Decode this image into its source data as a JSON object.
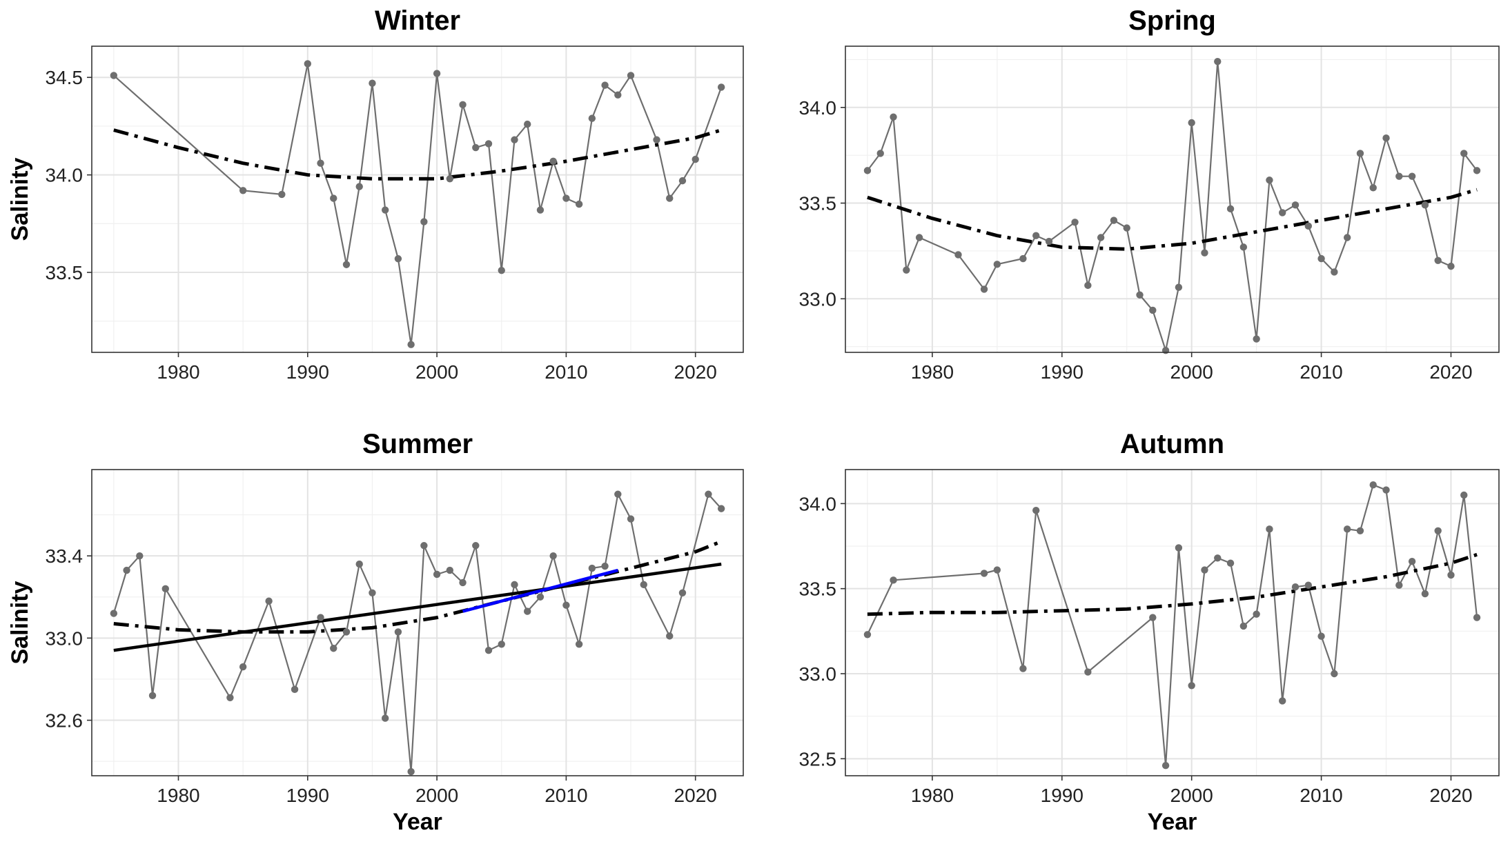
{
  "chart_data": [
    {
      "type": "line",
      "title": "Winter",
      "xlabel": "",
      "ylabel": "Salinity",
      "xlim": [
        1973.3,
        2023.7
      ],
      "ylim": [
        33.09,
        34.66
      ],
      "x_ticks": [
        1980,
        1990,
        2000,
        2010,
        2020
      ],
      "y_ticks": [
        33.5,
        34.0,
        34.5
      ],
      "grid": true,
      "series": [
        {
          "style": "gray line with points",
          "color": "#6e6e6e",
          "x": [
            1975,
            1985,
            1988,
            1990,
            1991,
            1992,
            1993,
            1994,
            1995,
            1996,
            1997,
            1998,
            1999,
            2000,
            2001,
            2002,
            2003,
            2004,
            2005,
            2006,
            2007,
            2008,
            2009,
            2010,
            2011,
            2012,
            2013,
            2014,
            2015,
            2017,
            2018,
            2019,
            2020,
            2022
          ],
          "y": [
            34.51,
            33.92,
            33.9,
            34.57,
            34.06,
            33.88,
            33.54,
            33.94,
            34.47,
            33.82,
            33.57,
            33.13,
            33.76,
            34.52,
            33.98,
            34.36,
            34.14,
            34.16,
            33.51,
            34.18,
            34.26,
            33.82,
            34.07,
            33.88,
            33.85,
            34.29,
            34.46,
            34.41,
            34.51,
            34.18,
            33.88,
            33.97,
            34.08,
            34.45
          ]
        },
        {
          "style": "dash-dot trend",
          "color": "#000000",
          "x": [
            1975,
            1980,
            1985,
            1990,
            1995,
            2000,
            2005,
            2010,
            2015,
            2020,
            2022
          ],
          "y": [
            34.23,
            34.14,
            34.06,
            34.0,
            33.98,
            33.98,
            34.02,
            34.07,
            34.13,
            34.19,
            34.23
          ]
        }
      ]
    },
    {
      "type": "line",
      "title": "Spring",
      "xlabel": "",
      "ylabel": "",
      "xlim": [
        1973.3,
        2023.7
      ],
      "ylim": [
        32.72,
        34.32
      ],
      "x_ticks": [
        1980,
        1990,
        2000,
        2010,
        2020
      ],
      "y_ticks": [
        33.0,
        33.5,
        34.0
      ],
      "grid": true,
      "series": [
        {
          "style": "gray line with points",
          "color": "#6e6e6e",
          "x": [
            1975,
            1976,
            1977,
            1978,
            1979,
            1982,
            1984,
            1985,
            1987,
            1988,
            1989,
            1991,
            1992,
            1993,
            1994,
            1995,
            1996,
            1997,
            1998,
            1999,
            2000,
            2001,
            2002,
            2003,
            2004,
            2005,
            2006,
            2007,
            2008,
            2009,
            2010,
            2011,
            2012,
            2013,
            2014,
            2015,
            2016,
            2017,
            2018,
            2019,
            2020,
            2021,
            2022
          ],
          "y": [
            33.67,
            33.76,
            33.95,
            33.15,
            33.32,
            33.23,
            33.05,
            33.18,
            33.21,
            33.33,
            33.3,
            33.4,
            33.07,
            33.32,
            33.41,
            33.37,
            33.02,
            32.94,
            32.73,
            33.06,
            33.92,
            33.24,
            34.24,
            33.47,
            33.27,
            32.79,
            33.62,
            33.45,
            33.49,
            33.38,
            33.21,
            33.14,
            33.32,
            33.76,
            33.58,
            33.84,
            33.64,
            33.64,
            33.49,
            33.2,
            33.17,
            33.76,
            33.67
          ]
        },
        {
          "style": "dash-dot trend",
          "color": "#000000",
          "x": [
            1975,
            1980,
            1985,
            1990,
            1995,
            2000,
            2005,
            2010,
            2015,
            2020,
            2022
          ],
          "y": [
            33.53,
            33.42,
            33.33,
            33.27,
            33.26,
            33.29,
            33.35,
            33.41,
            33.47,
            33.53,
            33.57
          ]
        }
      ]
    },
    {
      "type": "line",
      "title": "Summer",
      "xlabel": "Year",
      "ylabel": "Salinity",
      "xlim": [
        1973.3,
        2023.7
      ],
      "ylim": [
        32.33,
        33.82
      ],
      "x_ticks": [
        1980,
        1990,
        2000,
        2010,
        2020
      ],
      "y_ticks": [
        32.6,
        33.0,
        33.4
      ],
      "grid": true,
      "series": [
        {
          "style": "gray line with points",
          "color": "#6e6e6e",
          "x": [
            1975,
            1976,
            1977,
            1978,
            1979,
            1984,
            1985,
            1987,
            1989,
            1991,
            1992,
            1993,
            1994,
            1995,
            1996,
            1997,
            1998,
            1999,
            2000,
            2001,
            2002,
            2003,
            2004,
            2005,
            2006,
            2007,
            2008,
            2009,
            2010,
            2011,
            2012,
            2013,
            2014,
            2015,
            2016,
            2018,
            2019,
            2021,
            2022
          ],
          "y": [
            33.12,
            33.33,
            33.4,
            32.72,
            33.24,
            32.71,
            32.86,
            33.18,
            32.75,
            33.1,
            32.95,
            33.03,
            33.36,
            33.22,
            32.61,
            33.03,
            32.35,
            33.45,
            33.31,
            33.33,
            33.27,
            33.45,
            32.94,
            32.97,
            33.26,
            33.13,
            33.2,
            33.4,
            33.16,
            32.97,
            33.34,
            33.35,
            33.7,
            33.58,
            33.26,
            33.01,
            33.22,
            33.7,
            33.63
          ]
        },
        {
          "style": "dash-dot trend",
          "color": "#000000",
          "x": [
            1975,
            1980,
            1985,
            1990,
            1995,
            2000,
            2005,
            2010,
            2015,
            2020,
            2022
          ],
          "y": [
            33.07,
            33.04,
            33.03,
            33.03,
            33.05,
            33.1,
            33.18,
            33.26,
            33.34,
            33.42,
            33.47
          ]
        },
        {
          "style": "solid linear trend",
          "color": "#000000",
          "x": [
            1975,
            2022
          ],
          "y": [
            32.94,
            33.36
          ]
        },
        {
          "style": "solid segment",
          "color": "#0000ff",
          "x": [
            2002,
            2014
          ],
          "y": [
            33.13,
            33.33
          ]
        }
      ]
    },
    {
      "type": "line",
      "title": "Autumn",
      "xlabel": "Year",
      "ylabel": "",
      "xlim": [
        1973.3,
        2023.7
      ],
      "ylim": [
        32.4,
        34.2
      ],
      "x_ticks": [
        1980,
        1990,
        2000,
        2010,
        2020
      ],
      "y_ticks": [
        32.5,
        33.0,
        33.5,
        34.0
      ],
      "grid": true,
      "series": [
        {
          "style": "gray line with points",
          "color": "#6e6e6e",
          "x": [
            1975,
            1977,
            1984,
            1985,
            1987,
            1988,
            1992,
            1997,
            1998,
            1999,
            2000,
            2001,
            2002,
            2003,
            2004,
            2005,
            2006,
            2007,
            2008,
            2009,
            2010,
            2011,
            2012,
            2013,
            2014,
            2015,
            2016,
            2017,
            2018,
            2019,
            2020,
            2021,
            2022
          ],
          "y": [
            33.23,
            33.55,
            33.59,
            33.61,
            33.03,
            33.96,
            33.01,
            33.33,
            32.46,
            33.74,
            32.93,
            33.61,
            33.68,
            33.65,
            33.28,
            33.35,
            33.85,
            32.84,
            33.51,
            33.52,
            33.22,
            33.0,
            33.85,
            33.84,
            34.11,
            34.08,
            33.52,
            33.66,
            33.47,
            33.84,
            33.58,
            34.05,
            33.33
          ]
        },
        {
          "style": "dash-dot trend",
          "color": "#000000",
          "x": [
            1975,
            1980,
            1985,
            1990,
            1995,
            2000,
            2005,
            2010,
            2015,
            2020,
            2022
          ],
          "y": [
            33.35,
            33.36,
            33.36,
            33.37,
            33.38,
            33.41,
            33.45,
            33.51,
            33.57,
            33.65,
            33.7
          ]
        }
      ]
    }
  ]
}
